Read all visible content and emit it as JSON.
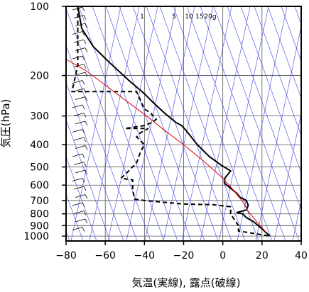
{
  "chart_data": {
    "type": "line",
    "xlabel": "気温(実線), 露点(破線)",
    "ylabel": "気圧(hPa)",
    "x_axis": {
      "min": -80,
      "max": 40,
      "ticks": [
        -80,
        -60,
        -40,
        -20,
        0,
        20,
        40
      ]
    },
    "y_axis": {
      "scale": "log",
      "min": 100,
      "max": 1050,
      "ticks": [
        100,
        200,
        300,
        400,
        500,
        600,
        700,
        800,
        900,
        1000
      ]
    },
    "grid": true,
    "mixing_ratio_labels": [
      "1",
      "5",
      "10",
      "15",
      "20g"
    ],
    "mixing_ratio_values": [
      1,
      5,
      10,
      15,
      20
    ],
    "series": [
      {
        "style": "solid-black",
        "points": [
          [
            -74,
            100
          ],
          [
            -72,
            125
          ],
          [
            -66,
            150
          ],
          [
            -58,
            175
          ],
          [
            -48,
            210
          ],
          [
            -40,
            240
          ],
          [
            -36,
            260
          ],
          [
            -30,
            290
          ],
          [
            -24,
            320
          ],
          [
            -21,
            330
          ],
          [
            -19,
            345
          ],
          [
            -13,
            400
          ],
          [
            -7,
            450
          ],
          [
            -1,
            490
          ],
          [
            4,
            520
          ],
          [
            1,
            560
          ],
          [
            1,
            590
          ],
          [
            7,
            650
          ],
          [
            9,
            680
          ],
          [
            12,
            700
          ],
          [
            13,
            735
          ],
          [
            12,
            770
          ],
          [
            7,
            790
          ],
          [
            10,
            800
          ],
          [
            12,
            830
          ],
          [
            16,
            870
          ],
          [
            20,
            930
          ],
          [
            24,
            1000
          ]
        ]
      },
      {
        "style": "dashed-black",
        "points": [
          [
            -74,
            100
          ],
          [
            -74,
            140
          ],
          [
            -74,
            180
          ],
          [
            -77,
            235
          ],
          [
            -60,
            235
          ],
          [
            -44,
            235
          ],
          [
            -40,
            280
          ],
          [
            -37,
            290
          ],
          [
            -34,
            310
          ],
          [
            -36,
            320
          ],
          [
            -40,
            330
          ],
          [
            -50,
            340
          ],
          [
            -38,
            340
          ],
          [
            -42,
            355
          ],
          [
            -44,
            370
          ],
          [
            -40,
            400
          ],
          [
            -42,
            430
          ],
          [
            -44,
            480
          ],
          [
            -49,
            530
          ],
          [
            -52,
            560
          ],
          [
            -46,
            570
          ],
          [
            -46,
            630
          ],
          [
            -45,
            690
          ],
          [
            -40,
            700
          ],
          [
            -20,
            725
          ],
          [
            -5,
            730
          ],
          [
            4,
            745
          ],
          [
            4,
            800
          ],
          [
            6,
            850
          ],
          [
            8,
            900
          ],
          [
            8,
            950
          ],
          [
            24,
            1000
          ]
        ]
      },
      {
        "style": "solid-red",
        "points": [
          [
            -80,
            170
          ],
          [
            -70,
            190
          ],
          [
            -60,
            220
          ],
          [
            -50,
            255
          ],
          [
            -40,
            295
          ],
          [
            -30,
            345
          ],
          [
            -20,
            400
          ],
          [
            -10,
            470
          ],
          [
            0,
            560
          ],
          [
            5,
            625
          ],
          [
            10,
            705
          ],
          [
            13,
            780
          ],
          [
            17,
            860
          ],
          [
            22,
            960
          ]
        ]
      }
    ]
  }
}
